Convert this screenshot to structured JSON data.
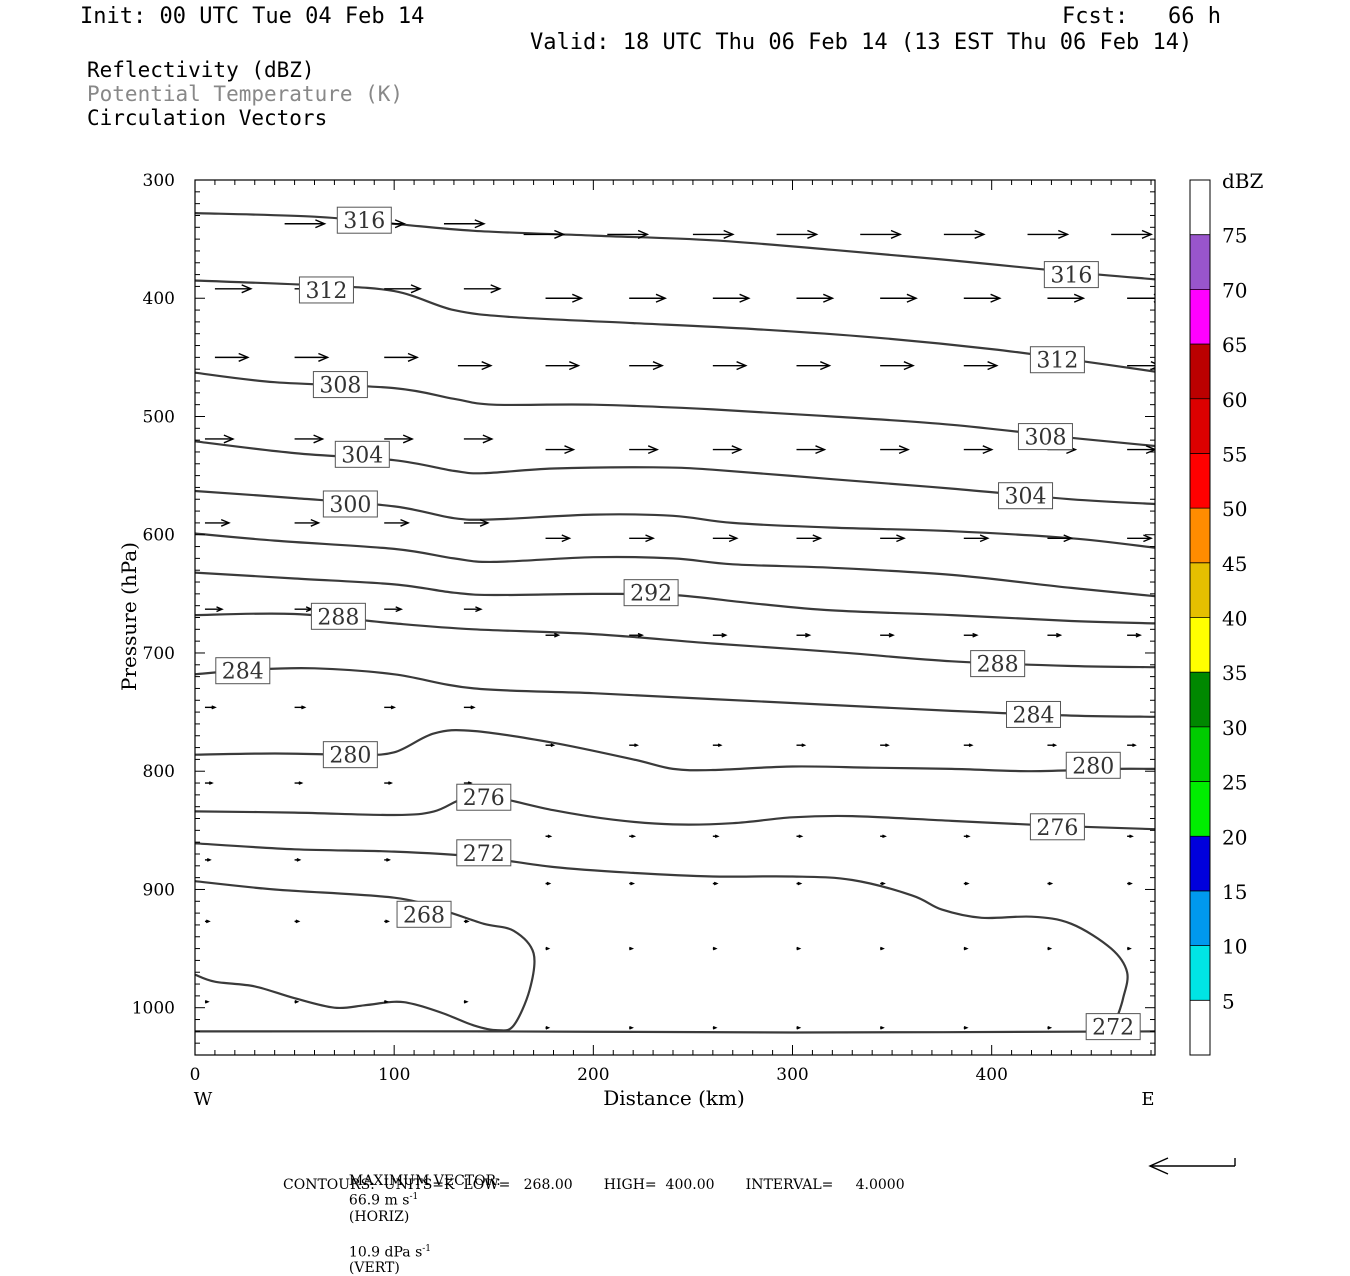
{
  "header": {
    "init": "Init: 00 UTC Tue 04 Feb 14",
    "fcst": "Fcst:   66 h",
    "valid": "Valid: 18 UTC Thu 06 Feb 14 (13 EST Thu 06 Feb 14)"
  },
  "legend": {
    "line1": "Reflectivity (dBZ)",
    "line2": "Potential Temperature (K)",
    "line3": "Circulation Vectors"
  },
  "footer": {
    "max_vector_label": "MAXIMUM VECTOR:",
    "horiz_value": "66.9 m s",
    "horiz_unit": "(HORIZ)",
    "vert_value": "10.9 dPa s",
    "vert_unit": "(VERT)",
    "exp": "-1",
    "contours": "CONTOURS:  UNITS=K  LOW=   268.00       HIGH=  400.00       INTERVAL=     4.0000"
  },
  "chart_data": {
    "type": "cross-section",
    "xlabel": "Distance (km)",
    "ylabel": "Pressure (hPa)",
    "xlim": [
      0,
      482
    ],
    "ylim": [
      1040,
      300
    ],
    "x_ticks": [
      0,
      100,
      200,
      300,
      400
    ],
    "y_ticks": [
      300,
      400,
      500,
      600,
      700,
      800,
      900,
      1000
    ],
    "x_end_labels": {
      "left": "W",
      "right": "E"
    },
    "colorbar": {
      "unit": "dBZ",
      "levels": [
        5,
        10,
        15,
        20,
        25,
        30,
        35,
        40,
        45,
        50,
        55,
        60,
        65,
        70,
        75
      ],
      "colors": [
        "#ffffff",
        "#00e5e5",
        "#0099ee",
        "#0000dd",
        "#00ee00",
        "#00cc00",
        "#008800",
        "#ffff00",
        "#e5bf00",
        "#ff8c00",
        "#ff0000",
        "#dd0000",
        "#bb0000",
        "#ff00ff",
        "#9955cc",
        "#ffffff"
      ]
    },
    "contour_color": "#3a3a3a",
    "theta_contours": [
      {
        "value": 316,
        "labels": [
          [
            85,
            334
          ],
          [
            440,
            380
          ]
        ],
        "points": [
          [
            0,
            328
          ],
          [
            60,
            331
          ],
          [
            100,
            337
          ],
          [
            140,
            343
          ],
          [
            200,
            347
          ],
          [
            260,
            351
          ],
          [
            320,
            359
          ],
          [
            380,
            368
          ],
          [
            440,
            378
          ],
          [
            482,
            384
          ]
        ]
      },
      {
        "value": 312,
        "labels": [
          [
            66,
            393
          ],
          [
            433,
            452
          ]
        ],
        "points": [
          [
            0,
            385
          ],
          [
            60,
            389
          ],
          [
            100,
            394
          ],
          [
            130,
            410
          ],
          [
            160,
            416
          ],
          [
            220,
            421
          ],
          [
            280,
            426
          ],
          [
            340,
            433
          ],
          [
            400,
            443
          ],
          [
            440,
            452
          ],
          [
            482,
            462
          ]
        ]
      },
      {
        "value": 308,
        "labels": [
          [
            73,
            473
          ],
          [
            427,
            517
          ]
        ],
        "points": [
          [
            0,
            463
          ],
          [
            40,
            471
          ],
          [
            100,
            476
          ],
          [
            130,
            485
          ],
          [
            150,
            490
          ],
          [
            200,
            490
          ],
          [
            260,
            494
          ],
          [
            320,
            500
          ],
          [
            380,
            507
          ],
          [
            440,
            518
          ],
          [
            482,
            525
          ]
        ]
      },
      {
        "value": 304,
        "labels": [
          [
            84,
            532
          ],
          [
            417,
            567
          ]
        ],
        "points": [
          [
            0,
            521
          ],
          [
            50,
            531
          ],
          [
            100,
            537
          ],
          [
            130,
            546
          ],
          [
            145,
            548
          ],
          [
            180,
            544
          ],
          [
            230,
            543
          ],
          [
            260,
            545
          ],
          [
            320,
            553
          ],
          [
            380,
            561
          ],
          [
            440,
            570
          ],
          [
            482,
            574
          ]
        ]
      },
      {
        "value": 300,
        "labels": [
          [
            78,
            574
          ]
        ],
        "points": [
          [
            0,
            563
          ],
          [
            50,
            569
          ],
          [
            100,
            576
          ],
          [
            130,
            586
          ],
          [
            150,
            587
          ],
          [
            200,
            583
          ],
          [
            240,
            584
          ],
          [
            270,
            590
          ],
          [
            320,
            594
          ],
          [
            380,
            597
          ],
          [
            440,
            603
          ],
          [
            482,
            611
          ]
        ]
      },
      {
        "value": 296,
        "labels": [],
        "points": [
          [
            0,
            599
          ],
          [
            40,
            605
          ],
          [
            100,
            612
          ],
          [
            130,
            620
          ],
          [
            150,
            623
          ],
          [
            200,
            619
          ],
          [
            240,
            620
          ],
          [
            270,
            625
          ],
          [
            320,
            628
          ],
          [
            380,
            634
          ],
          [
            440,
            645
          ],
          [
            482,
            652
          ]
        ]
      },
      {
        "value": 292,
        "labels": [
          [
            229,
            649
          ]
        ],
        "points": [
          [
            0,
            632
          ],
          [
            50,
            637
          ],
          [
            100,
            642
          ],
          [
            130,
            649
          ],
          [
            150,
            651
          ],
          [
            200,
            650
          ],
          [
            240,
            651
          ],
          [
            280,
            658
          ],
          [
            320,
            664
          ],
          [
            380,
            668
          ],
          [
            440,
            673
          ],
          [
            482,
            675
          ]
        ]
      },
      {
        "value": 288,
        "labels": [
          [
            72,
            669
          ],
          [
            403,
            709
          ]
        ],
        "points": [
          [
            0,
            668
          ],
          [
            50,
            667
          ],
          [
            100,
            675
          ],
          [
            140,
            680
          ],
          [
            200,
            684
          ],
          [
            260,
            692
          ],
          [
            320,
            699
          ],
          [
            380,
            707
          ],
          [
            440,
            711
          ],
          [
            482,
            712
          ]
        ]
      },
      {
        "value": 284,
        "labels": [
          [
            24,
            715
          ],
          [
            421,
            752
          ]
        ],
        "points": [
          [
            0,
            718
          ],
          [
            30,
            714
          ],
          [
            60,
            713
          ],
          [
            100,
            718
          ],
          [
            140,
            730
          ],
          [
            200,
            734
          ],
          [
            260,
            739
          ],
          [
            320,
            744
          ],
          [
            380,
            749
          ],
          [
            440,
            753
          ],
          [
            482,
            754
          ]
        ]
      },
      {
        "value": 280,
        "labels": [
          [
            78,
            786
          ],
          [
            451,
            795
          ]
        ],
        "points": [
          [
            0,
            786
          ],
          [
            40,
            785
          ],
          [
            80,
            786
          ],
          [
            100,
            784
          ],
          [
            120,
            768
          ],
          [
            140,
            766
          ],
          [
            180,
            776
          ],
          [
            220,
            790
          ],
          [
            240,
            798
          ],
          [
            260,
            799
          ],
          [
            300,
            796
          ],
          [
            340,
            797
          ],
          [
            380,
            798
          ],
          [
            420,
            800
          ],
          [
            460,
            798
          ],
          [
            482,
            798
          ]
        ]
      },
      {
        "value": 276,
        "labels": [
          [
            145,
            822
          ],
          [
            433,
            847
          ]
        ],
        "points": [
          [
            0,
            834
          ],
          [
            50,
            835
          ],
          [
            100,
            837
          ],
          [
            120,
            834
          ],
          [
            135,
            823
          ],
          [
            150,
            822
          ],
          [
            180,
            833
          ],
          [
            210,
            841
          ],
          [
            240,
            845
          ],
          [
            270,
            844
          ],
          [
            300,
            839
          ],
          [
            330,
            838
          ],
          [
            380,
            842
          ],
          [
            430,
            846
          ],
          [
            482,
            849
          ]
        ]
      },
      {
        "value": 272,
        "labels": [
          [
            145,
            869
          ],
          [
            461,
            1016
          ]
        ],
        "points": [
          [
            0,
            861
          ],
          [
            50,
            866
          ],
          [
            100,
            868
          ],
          [
            140,
            872
          ],
          [
            180,
            881
          ],
          [
            220,
            886
          ],
          [
            260,
            889
          ],
          [
            300,
            889
          ],
          [
            330,
            892
          ],
          [
            360,
            905
          ],
          [
            375,
            917
          ],
          [
            395,
            924
          ],
          [
            420,
            923
          ],
          [
            440,
            929
          ],
          [
            460,
            950
          ],
          [
            468,
            970
          ],
          [
            466,
            992
          ],
          [
            463,
            1008
          ]
        ]
      },
      {
        "value": 272,
        "labels": [],
        "points": [
          [
            0,
            1020
          ],
          [
            150,
            1020
          ],
          [
            300,
            1021
          ],
          [
            482,
            1020
          ]
        ]
      },
      {
        "value": 268,
        "labels": [
          [
            115,
            921
          ]
        ],
        "points": [
          [
            0,
            893
          ],
          [
            40,
            900
          ],
          [
            100,
            907
          ],
          [
            125,
            918
          ],
          [
            145,
            929
          ],
          [
            160,
            935
          ],
          [
            170,
            954
          ],
          [
            168,
            985
          ],
          [
            160,
            1015
          ],
          [
            152,
            1019
          ],
          [
            140,
            1015
          ],
          [
            125,
            1005
          ],
          [
            110,
            997
          ],
          [
            100,
            995
          ],
          [
            85,
            998
          ],
          [
            70,
            1000
          ],
          [
            50,
            992
          ],
          [
            30,
            982
          ],
          [
            10,
            978
          ],
          [
            0,
            972
          ]
        ]
      }
    ],
    "vector_rows": [
      {
        "p": 337,
        "len": 40,
        "dy": 0,
        "xs": [
          45,
          85,
          125
        ]
      },
      {
        "p": 346,
        "len": 40,
        "dy": 0,
        "xs": [
          165,
          207,
          250,
          292,
          334,
          376,
          418,
          460
        ]
      },
      {
        "p": 392,
        "len": 36,
        "dy": 0,
        "xs": [
          10,
          50,
          95,
          135
        ]
      },
      {
        "p": 400,
        "len": 36,
        "dy": 0,
        "xs": [
          176,
          218,
          260,
          302,
          344,
          386,
          428,
          468
        ]
      },
      {
        "p": 450,
        "len": 33,
        "dy": 0,
        "xs": [
          10,
          50,
          95
        ]
      },
      {
        "p": 457,
        "len": 33,
        "dy": 0,
        "xs": [
          132,
          176,
          218,
          260,
          302,
          344,
          386,
          428,
          468
        ]
      },
      {
        "p": 519,
        "len": 28,
        "dy": 0,
        "xs": [
          5,
          50,
          95,
          135
        ]
      },
      {
        "p": 528,
        "len": 28,
        "dy": 0,
        "xs": [
          176,
          218,
          260,
          302,
          344,
          386,
          428,
          468
        ]
      },
      {
        "p": 590,
        "len": 24,
        "dy": 0,
        "xs": [
          5,
          50,
          95,
          135
        ]
      },
      {
        "p": 603,
        "len": 24,
        "dy": 0,
        "xs": [
          176,
          218,
          260,
          302,
          344,
          386,
          428,
          468
        ]
      },
      {
        "p": 663,
        "len": 17,
        "dy": 0,
        "xs": [
          5,
          50,
          95,
          135
        ]
      },
      {
        "p": 685,
        "len": 13,
        "dy": 0,
        "xs": [
          176,
          218,
          260,
          302,
          344,
          386,
          428,
          468
        ]
      },
      {
        "p": 746,
        "len": 10,
        "dy": 0,
        "xs": [
          5,
          50,
          95,
          135
        ]
      },
      {
        "p": 778,
        "len": 8,
        "dy": 0,
        "xs": [
          176,
          218,
          260,
          302,
          344,
          386,
          428,
          468
        ]
      },
      {
        "p": 810,
        "len": 7,
        "dy": 0,
        "xs": [
          5,
          50,
          95,
          135
        ]
      },
      {
        "p": 855,
        "len": 5,
        "dy": 0,
        "xs": [
          176,
          218,
          260,
          302,
          344,
          386,
          428,
          468
        ]
      },
      {
        "p": 875,
        "len": 5,
        "dy": 0,
        "xs": [
          5,
          50,
          95,
          135
        ]
      },
      {
        "p": 895,
        "len": 4,
        "dy": 0,
        "xs": [
          176,
          218,
          260,
          302,
          344,
          386,
          428,
          468
        ]
      },
      {
        "p": 927,
        "len": 4,
        "dy": 0,
        "xs": [
          5,
          50,
          95,
          135
        ]
      },
      {
        "p": 950,
        "len": 3,
        "dy": 0,
        "xs": [
          176,
          218,
          260,
          302,
          344,
          386,
          428,
          468
        ]
      },
      {
        "p": 995,
        "len": 3,
        "dy": 0,
        "xs": [
          5,
          50,
          95,
          135
        ]
      },
      {
        "p": 1017,
        "len": 3,
        "dy": 0,
        "xs": [
          176,
          218,
          260,
          302,
          344,
          386,
          428,
          468
        ]
      }
    ]
  }
}
